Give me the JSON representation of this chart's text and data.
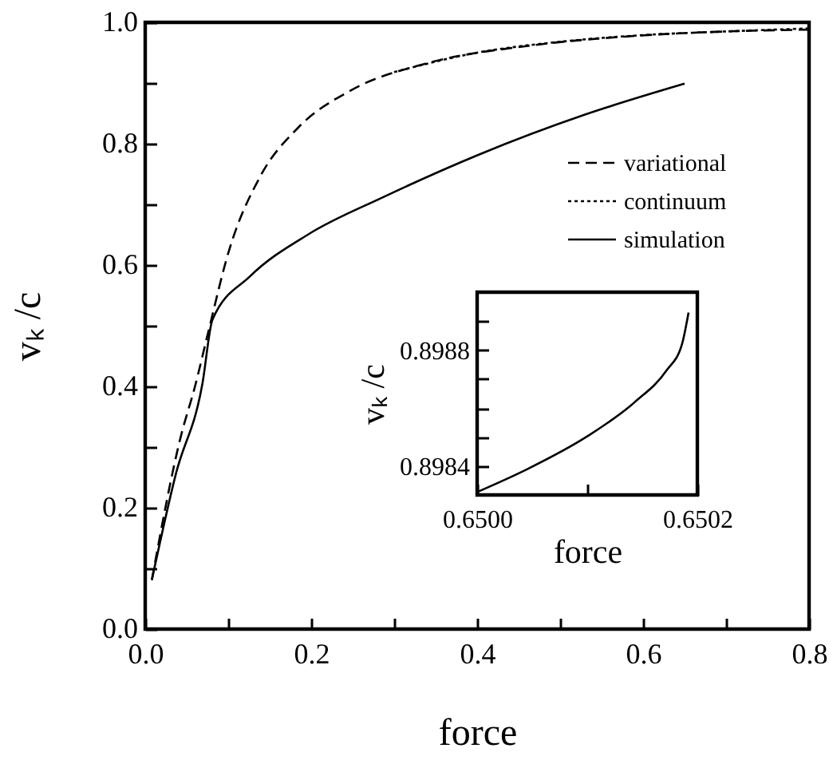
{
  "chart_data": [
    {
      "type": "line",
      "xlabel": "force",
      "ylabel": "vₖ /c",
      "legend": "right",
      "xlim": [
        0,
        0.8
      ],
      "ylim": [
        0,
        1
      ],
      "xticks": [
        {
          "value": 0,
          "label": "0.0"
        },
        {
          "value": 0.1,
          "label": null
        },
        {
          "value": 0.2,
          "label": "0.2"
        },
        {
          "value": 0.3,
          "label": null
        },
        {
          "value": 0.4,
          "label": "0.4"
        },
        {
          "value": 0.5,
          "label": null
        },
        {
          "value": 0.6,
          "label": "0.6"
        },
        {
          "value": 0.7,
          "label": null
        },
        {
          "value": 0.8,
          "label": "0.8"
        }
      ],
      "yticks": [
        {
          "value": 0,
          "label": "0.0"
        },
        {
          "value": 0.1,
          "label": null
        },
        {
          "value": 0.2,
          "label": "0.2"
        },
        {
          "value": 0.3,
          "label": null
        },
        {
          "value": 0.4,
          "label": "0.4"
        },
        {
          "value": 0.5,
          "label": null
        },
        {
          "value": 0.6,
          "label": "0.6"
        },
        {
          "value": 0.7,
          "label": null
        },
        {
          "value": 0.8,
          "label": "0.8"
        },
        {
          "value": 0.9,
          "label": null
        },
        {
          "value": 1,
          "label": "1.0"
        }
      ],
      "series": [
        {
          "name": "variational",
          "color": "#000000",
          "line_style": "dashed",
          "x": [
            0.008,
            0.043,
            0.06,
            0.075,
            0.101,
            0.139,
            0.184,
            0.248,
            0.338,
            0.466,
            0.594,
            0.7,
            0.8
          ],
          "values": [
            0.081,
            0.318,
            0.4,
            0.484,
            0.624,
            0.747,
            0.826,
            0.888,
            0.932,
            0.962,
            0.978,
            0.985,
            0.988
          ]
        },
        {
          "name": "continuum",
          "color": "#000000",
          "line_style": "dotted",
          "x": [
            0.3,
            0.4,
            0.5,
            0.6,
            0.7,
            0.8
          ],
          "values": [
            0.918,
            0.95,
            0.968,
            0.979,
            0.985,
            0.99
          ]
        },
        {
          "name": "simulation",
          "color": "#000000",
          "line_style": "solid",
          "x": [
            0.008,
            0.037,
            0.069,
            0.081,
            0.126,
            0.197,
            0.287,
            0.402,
            0.53,
            0.65
          ],
          "values": [
            0.081,
            0.256,
            0.405,
            0.51,
            0.581,
            0.651,
            0.712,
            0.782,
            0.848,
            0.899
          ]
        }
      ]
    },
    {
      "type": "line",
      "xlabel": "force",
      "ylabel": "vₖ /c",
      "xlim": [
        0.65,
        0.6502
      ],
      "ylim": [
        0.8983,
        0.899
      ],
      "xticks": [
        {
          "value": 0.65,
          "label": "0.6500"
        },
        {
          "value": 0.6501,
          "label": null
        },
        {
          "value": 0.6502,
          "label": "0.6502"
        }
      ],
      "yticks": [
        {
          "value": 0.8984,
          "label": "0.8984"
        },
        {
          "value": 0.8985,
          "label": null
        },
        {
          "value": 0.8986,
          "label": null
        },
        {
          "value": 0.8987,
          "label": null
        },
        {
          "value": 0.8988,
          "label": "0.8988"
        },
        {
          "value": 0.8989,
          "label": null
        }
      ],
      "series": [
        {
          "color": "#000000",
          "line_style": "solid",
          "x": [
            0.65,
            0.650046,
            0.650099,
            0.650143,
            0.650172,
            0.650186,
            0.650192
          ],
          "values": [
            0.89831,
            0.89839,
            0.8985,
            0.89862,
            0.89873,
            0.89882,
            0.89893
          ]
        }
      ]
    }
  ]
}
